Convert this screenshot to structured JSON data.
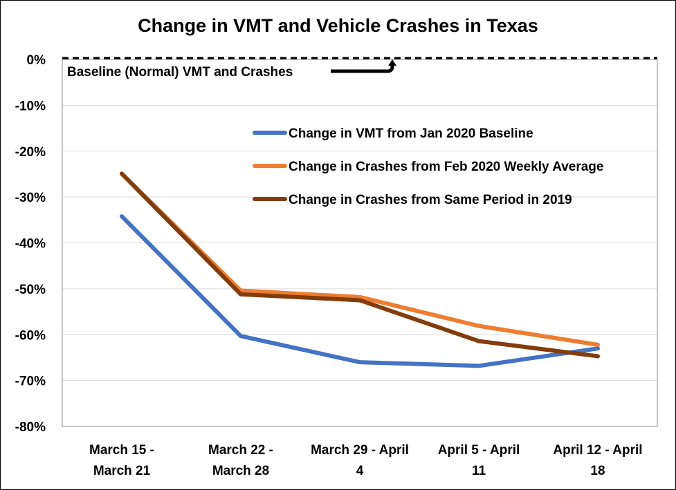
{
  "chart_data": {
    "type": "line",
    "title": "Change in VMT and Vehicle Crashes in Texas",
    "xlabel": "",
    "ylabel": "",
    "categories": [
      [
        "March 15 -",
        "March 21"
      ],
      [
        "March 22 -",
        "March 28"
      ],
      [
        "March 29 - April",
        "4"
      ],
      [
        "April 5 -  April",
        "11"
      ],
      [
        "April 12 - April",
        "18"
      ]
    ],
    "ylim": [
      -80,
      0
    ],
    "yticks": [
      0,
      -10,
      -20,
      -30,
      -40,
      -50,
      -60,
      -70,
      -80
    ],
    "ytick_labels": [
      "0%",
      "-10%",
      "-20%",
      "-30%",
      "-40%",
      "-50%",
      "-60%",
      "-70%",
      "-80%"
    ],
    "grid": true,
    "legend_position": "top-right",
    "series": [
      {
        "name": "Change in VMT from Jan 2020 Baseline",
        "color": "#4472C4",
        "values": [
          -34.2,
          -60.3,
          -66.0,
          -66.8,
          -63.0
        ]
      },
      {
        "name": "Change in Crashes from Feb 2020 Weekly Average",
        "color": "#ED7D31",
        "values": [
          -24.9,
          -50.4,
          -51.8,
          -58.1,
          -62.2
        ]
      },
      {
        "name": "Change in Crashes from Same Period in 2019",
        "color": "#843C0C",
        "values": [
          -24.9,
          -51.2,
          -52.5,
          -61.4,
          -64.7
        ]
      }
    ],
    "annotations": [
      {
        "text": "Baseline (Normal) VMT and Crashes",
        "style": "dashed baseline at 0% with arrow"
      }
    ]
  }
}
